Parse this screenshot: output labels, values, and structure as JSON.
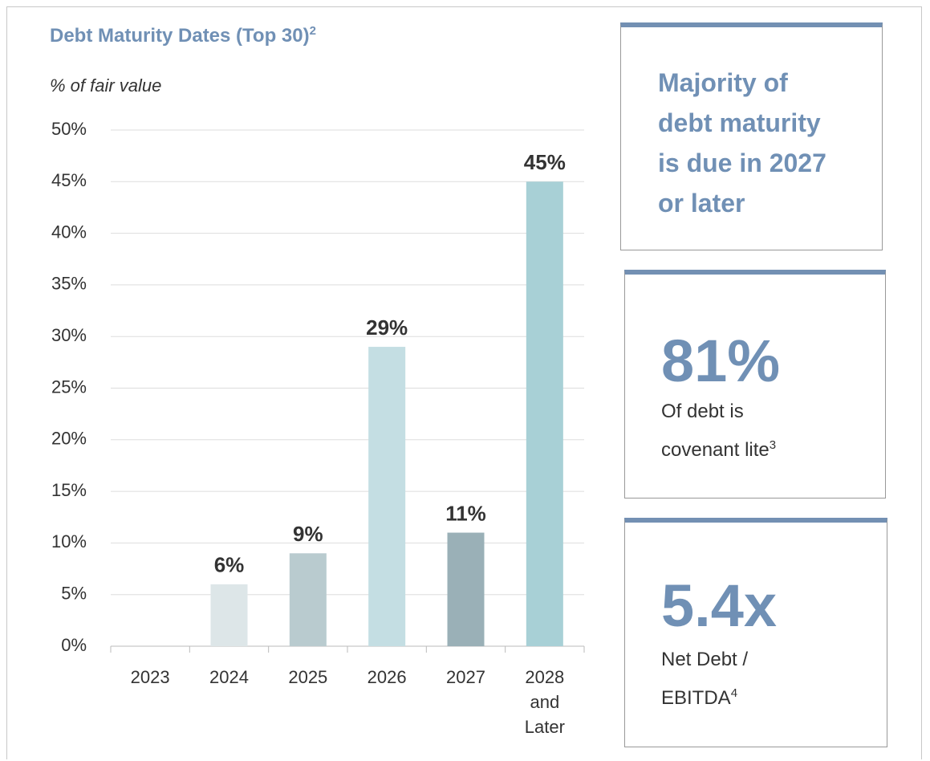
{
  "chart_data": {
    "type": "bar",
    "title": "Debt Maturity Dates (Top 30)",
    "title_superscript": "2",
    "subtitle": "% of fair value",
    "categories": [
      "2023",
      "2024",
      "2025",
      "2026",
      "2027",
      "2028 and Later"
    ],
    "values": [
      null,
      6,
      9,
      29,
      11,
      45
    ],
    "value_labels": [
      null,
      "6%",
      "9%",
      "29%",
      "11%",
      "45%"
    ],
    "colors": [
      "#dde6e8",
      "#dde6e8",
      "#b9cbcf",
      "#c4dee3",
      "#9ab0b7",
      "#a8d0d6"
    ],
    "ylim": [
      0,
      50
    ],
    "yticks": [
      {
        "value": 0,
        "label": "0%"
      },
      {
        "value": 5,
        "label": "5%"
      },
      {
        "value": 10,
        "label": "10%"
      },
      {
        "value": 15,
        "label": "15%"
      },
      {
        "value": 20,
        "label": "20%"
      },
      {
        "value": 25,
        "label": "25%"
      },
      {
        "value": 30,
        "label": "30%"
      },
      {
        "value": 35,
        "label": "35%"
      },
      {
        "value": 40,
        "label": "40%"
      },
      {
        "value": 45,
        "label": "45%"
      },
      {
        "value": 50,
        "label": "50%"
      }
    ],
    "grid": true
  },
  "panels": [
    {
      "lines": [
        "Majority of",
        "debt maturity",
        "is due in 2027",
        "or later"
      ]
    },
    {
      "big": "81%",
      "lines": [
        "Of debt is",
        "covenant lite"
      ],
      "superscript": "3"
    },
    {
      "big": "5.4x",
      "lines": [
        "Net Debt /",
        "EBITDA"
      ],
      "superscript": "4"
    }
  ]
}
